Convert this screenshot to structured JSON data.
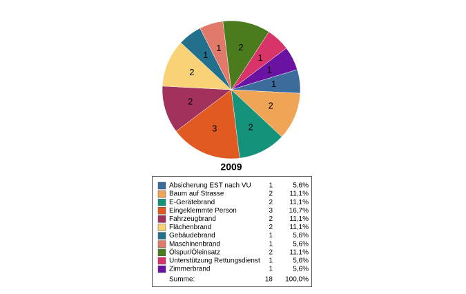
{
  "chart_data": {
    "type": "pie",
    "title": "2009",
    "categories": [
      "Absicherung EST nach VU",
      "Baum auf Strasse",
      "E-Gerätebrand",
      "Eingeklemmte Person",
      "Fahrzeugbrand",
      "Flächenbrand",
      "Gebäudebrand",
      "Maschinenbrand",
      "Ölspur/Öleinsatz",
      "Unterstützung Rettungsdienst",
      "Zimmerbrand"
    ],
    "values": [
      1,
      2,
      2,
      3,
      2,
      2,
      1,
      1,
      2,
      1,
      1
    ],
    "shares": [
      "5,6%",
      "11,1%",
      "11,1%",
      "16,7%",
      "11,1%",
      "11,1%",
      "5,6%",
      "5,6%",
      "11,1%",
      "5,6%",
      "5,6%"
    ],
    "colors": [
      "#3c6c9c",
      "#f0a456",
      "#14927a",
      "#e05a22",
      "#a2325c",
      "#f8d274",
      "#22708c",
      "#e27a6c",
      "#4a7c1e",
      "#d8346a",
      "#6a12a2"
    ],
    "total_label": "Summe:",
    "total": 18,
    "total_share": "100,0%"
  }
}
